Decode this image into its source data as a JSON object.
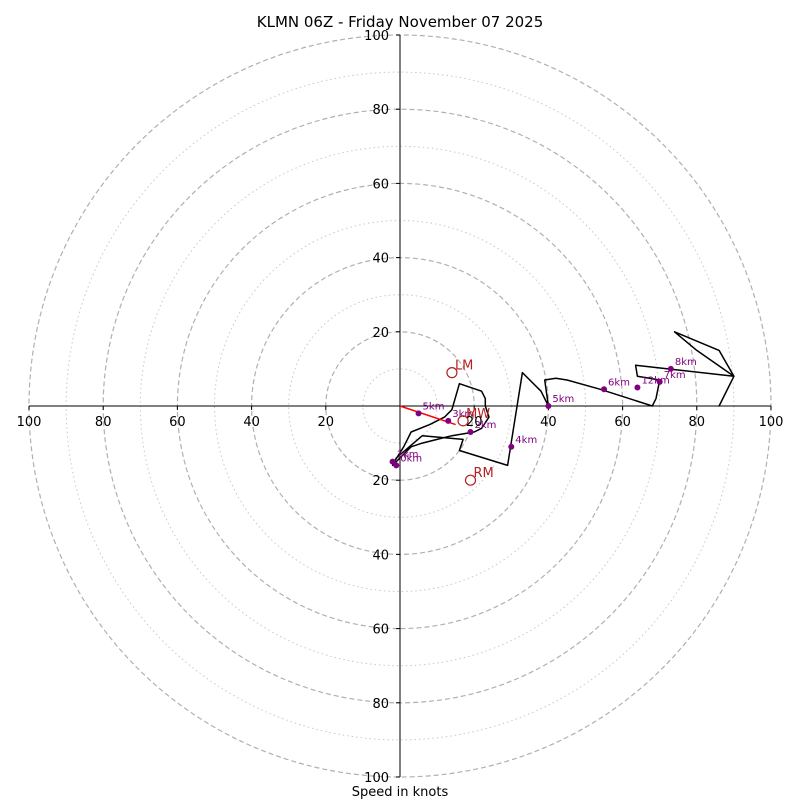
{
  "chart_data": {
    "type": "hodograph",
    "title": "KLMN 06Z - Friday November 07 2025",
    "xlabel": "Speed in knots",
    "axis_range": [
      -100,
      100
    ],
    "ring_major": [
      20,
      40,
      60,
      80,
      100
    ],
    "ring_minor": [
      10,
      30,
      50,
      70,
      90
    ],
    "x_tick_labels": [
      "100",
      "80",
      "60",
      "40",
      "20",
      "20",
      "40",
      "60",
      "80",
      "100"
    ],
    "x_tick_values": [
      -100,
      -80,
      -60,
      -40,
      -20,
      20,
      40,
      60,
      80,
      100
    ],
    "y_tick_labels": [
      "100",
      "80",
      "60",
      "40",
      "20",
      "20",
      "40",
      "60",
      "80",
      "100"
    ],
    "y_tick_values": [
      100,
      80,
      60,
      40,
      20,
      -20,
      -40,
      -60,
      -80,
      -100
    ],
    "wind_trace": [
      [
        -2,
        -16
      ],
      [
        -1.5,
        -15
      ],
      [
        1,
        -11
      ],
      [
        2,
        -9
      ],
      [
        3,
        -7
      ],
      [
        8,
        -5
      ],
      [
        12,
        -3
      ],
      [
        14,
        -1
      ],
      [
        16,
        6
      ],
      [
        22,
        4
      ],
      [
        23,
        2
      ],
      [
        23,
        0
      ],
      [
        24,
        -3
      ],
      [
        22,
        -6
      ],
      [
        20,
        -7
      ],
      [
        14,
        -8
      ],
      [
        10,
        -9
      ],
      [
        6,
        -10
      ],
      [
        3,
        -11
      ],
      [
        1,
        -13
      ],
      [
        -2,
        -16
      ],
      [
        -1,
        -14
      ],
      [
        6,
        -8
      ],
      [
        17,
        -9
      ],
      [
        16,
        -12
      ],
      [
        29,
        -16
      ],
      [
        33,
        9
      ],
      [
        38,
        4
      ],
      [
        40,
        0
      ],
      [
        39,
        7
      ],
      [
        42,
        7.5
      ],
      [
        45,
        7
      ],
      [
        54,
        4.5
      ],
      [
        68,
        0
      ],
      [
        69,
        2
      ],
      [
        70,
        7
      ],
      [
        64,
        8
      ],
      [
        63.5,
        11
      ],
      [
        90,
        8
      ],
      [
        86,
        0
      ],
      [
        90,
        8
      ],
      [
        86,
        15
      ],
      [
        74,
        20
      ],
      [
        80,
        15
      ],
      [
        90,
        8
      ]
    ],
    "height_markers": [
      {
        "label": "0km",
        "x": -1,
        "y": -16
      },
      {
        "label": "1km",
        "x": -2,
        "y": -15
      },
      {
        "label": "2km",
        "x": 19,
        "y": -7
      },
      {
        "label": "3km",
        "x": 13,
        "y": -4
      },
      {
        "label": "4km",
        "x": 30,
        "y": -11
      },
      {
        "label": "5km",
        "x": 40,
        "y": 0
      },
      {
        "label": "6km",
        "x": 55,
        "y": 4.5
      },
      {
        "label": "7km",
        "x": 70,
        "y": 6.5
      },
      {
        "label": "8km",
        "x": 73,
        "y": 10
      },
      {
        "label": "12km",
        "x": 64,
        "y": 5
      },
      {
        "label": "5km",
        "x": 5,
        "y": -2
      }
    ],
    "shear_vector": {
      "from": [
        0,
        0
      ],
      "to": [
        15,
        -5
      ]
    },
    "storm_motion": [
      {
        "label": "LM",
        "x": 14,
        "y": 9
      },
      {
        "label": "RM",
        "x": 19,
        "y": -20
      },
      {
        "label": "MW",
        "x": 17,
        "y": -4
      }
    ],
    "colors": {
      "trace": "#000000",
      "height_markers": "#800080",
      "shear": "#ff0000",
      "storm_motion": "#b22222",
      "ring_major": "#b0b0b0",
      "ring_minor": "#c8c8c8"
    }
  }
}
